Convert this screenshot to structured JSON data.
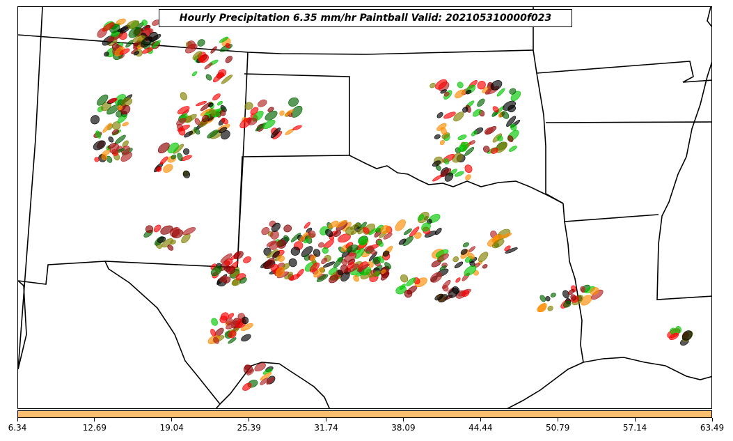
{
  "title": "Hourly Precipitation 6.35 mm/hr Paintball Valid: 202105310000f023",
  "colorbar": {
    "color": "#fdbf6f",
    "ticks": [
      "6.34",
      "12.69",
      "19.04",
      "25.39",
      "31.74",
      "38.09",
      "44.44",
      "50.79",
      "57.14",
      "63.49"
    ]
  },
  "member_colors": [
    "#ff0000",
    "#ff8c00",
    "#00c800",
    "#006400",
    "#8b0000",
    "#808000",
    "#000000",
    "#b22222"
  ]
}
